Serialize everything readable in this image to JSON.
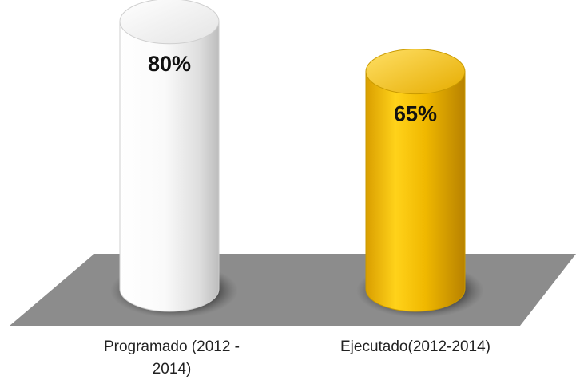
{
  "chart_data": {
    "type": "bar",
    "style": "3d-cylinder",
    "categories": [
      "Programado (2012 - 2014)",
      "Ejecutado(2012-2014)"
    ],
    "category_lines": [
      [
        "Programado (2012 -",
        "2014)"
      ],
      [
        "Ejecutado(2012-2014)"
      ]
    ],
    "values": [
      80,
      65
    ],
    "data_labels": [
      "80%",
      "65%"
    ],
    "ylim": [
      0,
      100
    ],
    "grid": false,
    "legend": "none",
    "colors": {
      "bar_1": "#f2f2f2",
      "bar_2": "#f5c400",
      "floor": "#8c8c8c",
      "background": "#ffffff"
    }
  }
}
